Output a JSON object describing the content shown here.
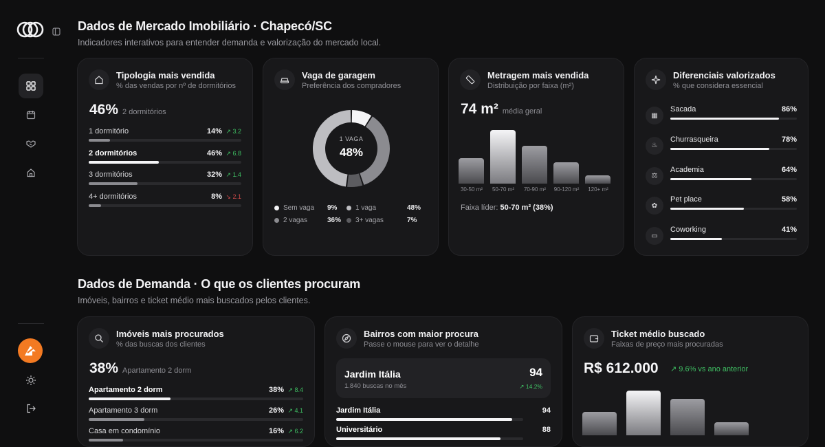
{
  "sections": {
    "market": {
      "title": "Dados de Mercado Imobiliário · Chapecó/SC",
      "subtitle": "Indicadores interativos para entender demanda e valorização do mercado local."
    },
    "demand": {
      "title": "Dados de Demanda · O que os clientes procuram",
      "subtitle": "Imóveis, bairros e ticket médio mais buscados pelos clientes."
    }
  },
  "tipologia": {
    "title": "Tipologia mais vendida",
    "subtitle": "% das vendas por nº de dormitórios",
    "big_value": "46%",
    "big_label": "2 dormitórios",
    "rows": [
      {
        "label": "1 dormitório",
        "pct": "14%",
        "change": "3.2",
        "dir": "up",
        "value": 14
      },
      {
        "label": "2 dormitórios",
        "pct": "46%",
        "change": "6.8",
        "dir": "up",
        "value": 46
      },
      {
        "label": "3 dormitórios",
        "pct": "32%",
        "change": "1.4",
        "dir": "up",
        "value": 32
      },
      {
        "label": "4+ dormitórios",
        "pct": "8%",
        "change": "2.1",
        "dir": "down",
        "value": 8
      }
    ]
  },
  "garagem": {
    "title": "Vaga de garagem",
    "subtitle": "Preferência dos compradores",
    "center_label": "1 VAGA",
    "center_value": "48%",
    "legend": [
      {
        "label": "Sem vaga",
        "pct": "9%",
        "color": "#f4f4f6",
        "value": 9
      },
      {
        "label": "1 vaga",
        "pct": "48%",
        "color": "#bdbdc1",
        "value": 48
      },
      {
        "label": "2 vagas",
        "pct": "36%",
        "color": "#8b8b90",
        "value": 36
      },
      {
        "label": "3+ vagas",
        "pct": "7%",
        "color": "#5c5c60",
        "value": 7
      }
    ]
  },
  "metragem": {
    "title": "Metragem mais vendida",
    "subtitle": "Distribuição por faixa (m²)",
    "big_value": "74 m²",
    "big_label": "média geral",
    "footer_label": "Faixa líder:",
    "footer_value": "50-70 m² (38%)",
    "bars": [
      {
        "label": "30-50 m²",
        "value": 18
      },
      {
        "label": "50-70 m²",
        "value": 38
      },
      {
        "label": "70-90 m²",
        "value": 27
      },
      {
        "label": "90-120 m²",
        "value": 15
      },
      {
        "label": "120+ m²",
        "value": 6
      }
    ]
  },
  "diferenciais": {
    "title": "Diferenciais valorizados",
    "subtitle": "% que considera essencial",
    "items": [
      {
        "label": "Sacada",
        "pct": "86%",
        "value": 86,
        "icon": "balcony-icon"
      },
      {
        "label": "Churrasqueira",
        "pct": "78%",
        "value": 78,
        "icon": "flame-icon"
      },
      {
        "label": "Academia",
        "pct": "64%",
        "value": 64,
        "icon": "dumbbell-icon"
      },
      {
        "label": "Pet place",
        "pct": "58%",
        "value": 58,
        "icon": "paw-icon"
      },
      {
        "label": "Coworking",
        "pct": "41%",
        "value": 41,
        "icon": "laptop-icon"
      }
    ]
  },
  "imoveis": {
    "title": "Imóveis mais procurados",
    "subtitle": "% das buscas dos clientes",
    "big_value": "38%",
    "big_label": "Apartamento 2 dorm",
    "rows": [
      {
        "label": "Apartamento 2 dorm",
        "pct": "38%",
        "change": "8.4",
        "dir": "up",
        "value": 38
      },
      {
        "label": "Apartamento 3 dorm",
        "pct": "26%",
        "change": "4.1",
        "dir": "up",
        "value": 26
      },
      {
        "label": "Casa em condomínio",
        "pct": "16%",
        "change": "6.2",
        "dir": "up",
        "value": 16
      }
    ]
  },
  "bairros": {
    "title": "Bairros com maior procura",
    "subtitle": "Passe o mouse para ver o detalhe",
    "highlight": {
      "name": "Jardim Itália",
      "searches": "1.840 buscas no mês",
      "score": "94",
      "change": "14.2%"
    },
    "rows": [
      {
        "label": "Jardim Itália",
        "score": "94",
        "value": 94
      },
      {
        "label": "Universitário",
        "score": "88",
        "value": 88
      }
    ]
  },
  "ticket": {
    "title": "Ticket médio buscado",
    "subtitle": "Faixas de preço mais procuradas",
    "big_value": "R$ 612.000",
    "change": "9.6% vs ano anterior",
    "bars": [
      {
        "value": 22
      },
      {
        "value": 42
      },
      {
        "value": 34
      },
      {
        "value": 12
      }
    ]
  },
  "colors": {
    "accent": "#f37a22",
    "up": "#3fbf63",
    "down": "#d04a4a"
  }
}
